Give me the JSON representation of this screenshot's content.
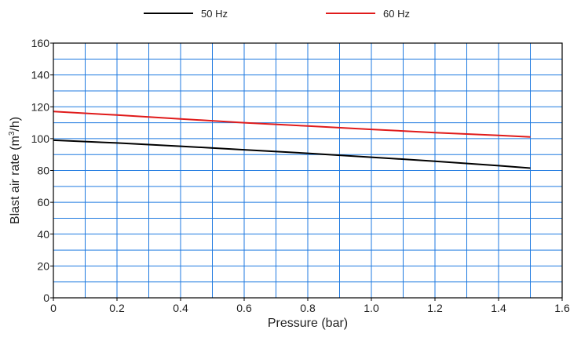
{
  "chart_data": {
    "type": "line",
    "title": "",
    "xlabel": "Pressure (bar)",
    "ylabel_parts": {
      "before": "Blast air rate (m",
      "sup": "3",
      "after": "/h)"
    },
    "xlim": [
      0,
      1.6
    ],
    "ylim": [
      0,
      160
    ],
    "x_ticks": [
      0,
      0.2,
      0.4,
      0.6,
      0.8,
      1.0,
      1.2,
      1.4,
      1.6
    ],
    "x_tick_labels": [
      "0",
      "0.2",
      "0.4",
      "0.6",
      "0.8",
      "1.0",
      "1.2",
      "1.4",
      "1.6"
    ],
    "y_ticks": [
      0,
      20,
      40,
      60,
      80,
      100,
      120,
      140,
      160
    ],
    "y_tick_labels": [
      "0",
      "20",
      "40",
      "60",
      "80",
      "100",
      "120",
      "140",
      "160"
    ],
    "x_grid_step": 0.1,
    "y_grid_step": 10,
    "grid": true,
    "legend_position": "top",
    "series": [
      {
        "name": "50 Hz",
        "color": "#000000",
        "x": [
          0,
          0.2,
          0.4,
          0.6,
          0.8,
          1.0,
          1.2,
          1.4,
          1.5
        ],
        "y": [
          99,
          97.3,
          95.2,
          93.0,
          90.8,
          88.3,
          85.8,
          83.0,
          81.5
        ]
      },
      {
        "name": "60 Hz",
        "color": "#e01b1b",
        "x": [
          0,
          0.2,
          0.4,
          0.6,
          0.8,
          1.0,
          1.2,
          1.4,
          1.5
        ],
        "y": [
          117,
          114.8,
          112.4,
          110.0,
          107.9,
          105.8,
          103.8,
          102.0,
          101
        ]
      }
    ],
    "grid_color": "#1f7ae0",
    "axis_color": "#000000"
  }
}
